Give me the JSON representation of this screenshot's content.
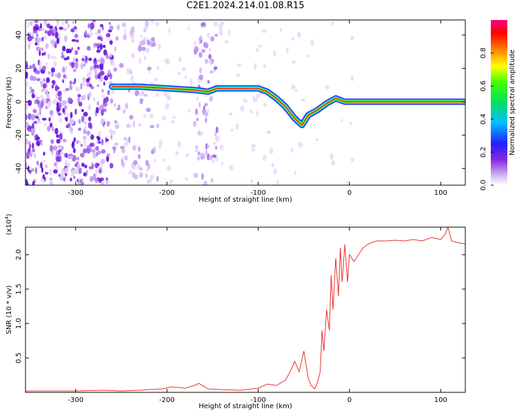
{
  "title": "C2E1.2024.214.01.08.R15",
  "chart_data": [
    {
      "type": "heatmap",
      "title": "C2E1.2024.214.01.08.R15",
      "xlabel": "Height of straight line (km)",
      "ylabel": "Frequency (Hz)",
      "xlim": [
        -355,
        127
      ],
      "ylim": [
        -50,
        49
      ],
      "xticks": [
        -300,
        -200,
        -100,
        0,
        100
      ],
      "yticks": [
        -40,
        -20,
        0,
        20,
        40
      ],
      "colorbar": {
        "label": "Normalized spectral amplitude",
        "range": [
          0,
          1
        ],
        "ticks": [
          "0.0",
          "0.2",
          "0.4",
          "0.6",
          "0.8"
        ],
        "colormap": "rainbow (white-purple-blue-cyan-green-yellow-red-magenta)"
      },
      "signal_track": {
        "x": [
          -260,
          -230,
          -200,
          -170,
          -155,
          -145,
          -110,
          -100,
          -90,
          -80,
          -70,
          -60,
          -52,
          -45,
          -35,
          -25,
          -15,
          -5,
          10,
          127
        ],
        "y": [
          9,
          9,
          8,
          7,
          6,
          8,
          8,
          8,
          6,
          2,
          -3,
          -10,
          -14,
          -8,
          -5,
          -1,
          2,
          0,
          0,
          0
        ]
      }
    },
    {
      "type": "line",
      "xlabel": "Height of straight line (km)",
      "ylabel": "SNR (10 * v/v)",
      "y_multiplier": "(x10^4)",
      "y_multiplier_base": "(x10",
      "y_multiplier_exp": "4",
      "y_multiplier_close": ")",
      "xlim": [
        -355,
        127
      ],
      "ylim": [
        0,
        2.4
      ],
      "xticks": [
        -300,
        -200,
        -100,
        0,
        100
      ],
      "yticks": [
        0.5,
        1.0,
        1.5,
        2.0
      ],
      "series": [
        {
          "color": "#e8302c",
          "x": [
            -355,
            -330,
            -300,
            -270,
            -250,
            -230,
            -220,
            -205,
            -195,
            -180,
            -170,
            -165,
            -155,
            -140,
            -120,
            -100,
            -90,
            -80,
            -70,
            -65,
            -60,
            -55,
            -50,
            -45,
            -42,
            -38,
            -35,
            -32,
            -30,
            -28,
            -25,
            -22,
            -20,
            -18,
            -15,
            -12,
            -10,
            -8,
            -5,
            -2,
            0,
            5,
            10,
            15,
            20,
            25,
            30,
            40,
            50,
            60,
            70,
            80,
            90,
            100,
            105,
            108,
            112,
            120,
            127
          ],
          "y": [
            0.02,
            0.02,
            0.02,
            0.03,
            0.02,
            0.03,
            0.04,
            0.05,
            0.08,
            0.06,
            0.1,
            0.13,
            0.05,
            0.04,
            0.03,
            0.06,
            0.12,
            0.1,
            0.18,
            0.3,
            0.45,
            0.3,
            0.6,
            0.2,
            0.1,
            0.05,
            0.15,
            0.3,
            0.9,
            0.6,
            1.2,
            0.9,
            1.7,
            1.2,
            1.95,
            1.4,
            2.1,
            1.6,
            2.15,
            1.6,
            2.0,
            1.9,
            2.0,
            2.1,
            2.15,
            2.18,
            2.2,
            2.2,
            2.21,
            2.2,
            2.22,
            2.2,
            2.25,
            2.22,
            2.3,
            2.4,
            2.2,
            2.17,
            2.16
          ]
        }
      ]
    }
  ]
}
